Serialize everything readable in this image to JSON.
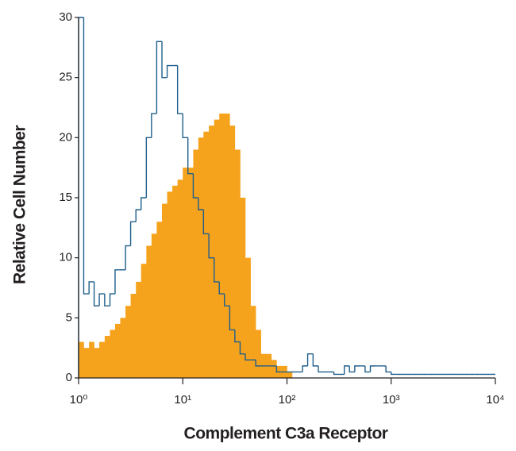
{
  "chart_data": {
    "type": "histogram",
    "x_label": "Complement C3a Receptor",
    "y_label": "Relative Cell Number",
    "x_log": true,
    "xlim": [
      1,
      10000
    ],
    "ylim": [
      0,
      30
    ],
    "xticks": [
      {
        "value": 1,
        "label": "10⁰"
      },
      {
        "value": 10,
        "label": "10¹"
      },
      {
        "value": 100,
        "label": "10²"
      },
      {
        "value": 1000,
        "label": "10³"
      },
      {
        "value": 10000,
        "label": "10⁴"
      }
    ],
    "yticks": [
      0,
      5,
      10,
      15,
      20,
      25,
      30
    ],
    "bins": [
      1,
      1.12,
      1.26,
      1.41,
      1.58,
      1.78,
      2,
      2.24,
      2.51,
      2.82,
      3.16,
      3.55,
      3.98,
      4.47,
      5.01,
      5.62,
      6.31,
      7.08,
      7.94,
      8.91,
      10,
      11.2,
      12.6,
      14.1,
      15.8,
      17.8,
      20,
      22.4,
      25.1,
      28.2,
      31.6,
      35.5,
      39.8,
      44.7,
      50.1,
      56.2,
      63.1,
      70.8,
      79.4,
      89.1,
      100,
      112,
      126,
      141,
      158,
      178,
      200,
      224,
      251,
      282,
      316,
      355,
      398,
      447,
      501,
      562,
      631,
      708,
      794,
      891,
      1000,
      1120,
      1260,
      1410,
      1580,
      1780,
      2000,
      2240,
      2510,
      2820,
      3160,
      3550,
      3980,
      4470,
      5010,
      5620,
      6310,
      7080,
      7940,
      8910,
      10000
    ],
    "series": [
      {
        "color": "#f5a21c",
        "filled": true,
        "values": [
          3,
          2.5,
          3,
          2.5,
          3,
          3.5,
          4,
          4.5,
          5,
          6,
          7,
          8,
          9.5,
          11,
          12,
          13,
          14.5,
          15.5,
          16,
          16.5,
          17.5,
          17.5,
          19,
          20,
          20.5,
          21,
          21.5,
          22,
          22,
          21,
          19,
          15,
          10,
          6,
          4,
          2,
          2,
          1.5,
          1,
          1,
          0.5,
          0,
          0,
          0,
          0,
          0,
          0,
          0,
          0,
          0,
          0,
          0,
          0,
          0,
          0,
          0,
          0,
          0,
          0,
          0,
          0,
          0,
          0,
          0,
          0,
          0,
          0,
          0,
          0,
          0,
          0,
          0,
          0,
          0,
          0,
          0,
          0,
          0,
          0,
          0
        ]
      },
      {
        "color": "#1f5f8c",
        "filled": false,
        "values": [
          30,
          7,
          8,
          6,
          7,
          6,
          7,
          9,
          9,
          11,
          13,
          14,
          15,
          20,
          22,
          28,
          25,
          26,
          26,
          22,
          20,
          17,
          15,
          14,
          12,
          10,
          8,
          7,
          6,
          4,
          3,
          2,
          1.5,
          1.5,
          1,
          1,
          1,
          1,
          0.5,
          0.5,
          0.5,
          0.5,
          0.5,
          1,
          2,
          1,
          0.5,
          0.5,
          0.5,
          0.3,
          0.3,
          1,
          0.5,
          1,
          1,
          0.5,
          1,
          1,
          1,
          0.5,
          0.3,
          0.3,
          0.3,
          0.3,
          0.3,
          0.3,
          0.3,
          0.3,
          0.3,
          0.3,
          0.3,
          0.3,
          0.3,
          0.3,
          0.3,
          0.3,
          0.3,
          0.3,
          0.3,
          0.3
        ]
      }
    ]
  }
}
